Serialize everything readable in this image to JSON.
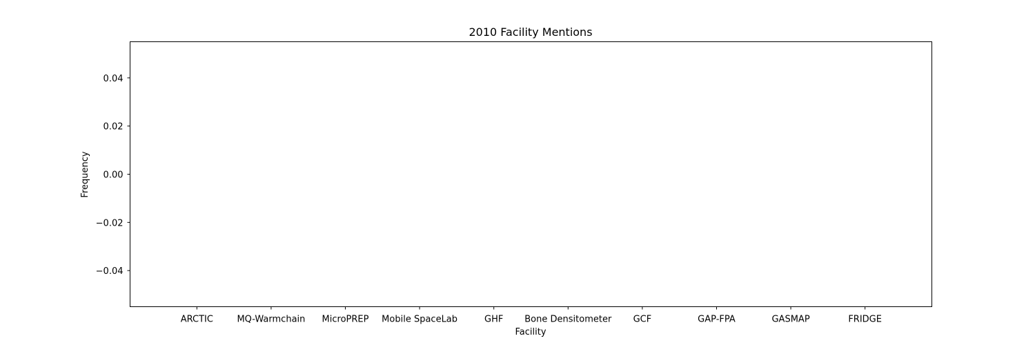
{
  "chart_data": {
    "type": "bar",
    "title": "2010 Facility Mentions",
    "xlabel": "Facility",
    "ylabel": "Frequency",
    "categories": [
      "ARCTIC",
      "MQ-Warmchain",
      "MicroPREP",
      "Mobile SpaceLab",
      "GHF",
      "Bone Densitometer",
      "GCF",
      "GAP-FPA",
      "GASMAP",
      "FRIDGE"
    ],
    "values": [
      0,
      0,
      0,
      0,
      0,
      0,
      0,
      0,
      0,
      0
    ],
    "ylim": [
      -0.055,
      0.055
    ],
    "yticks": [
      0.04,
      0.02,
      0.0,
      -0.02,
      -0.04
    ],
    "ytick_labels": [
      "0.04",
      "0.02",
      "0.00",
      "−0.02",
      "−0.04"
    ],
    "grid": false,
    "colors": {
      "bar": "#1f77b4",
      "axis": "#000000"
    }
  }
}
